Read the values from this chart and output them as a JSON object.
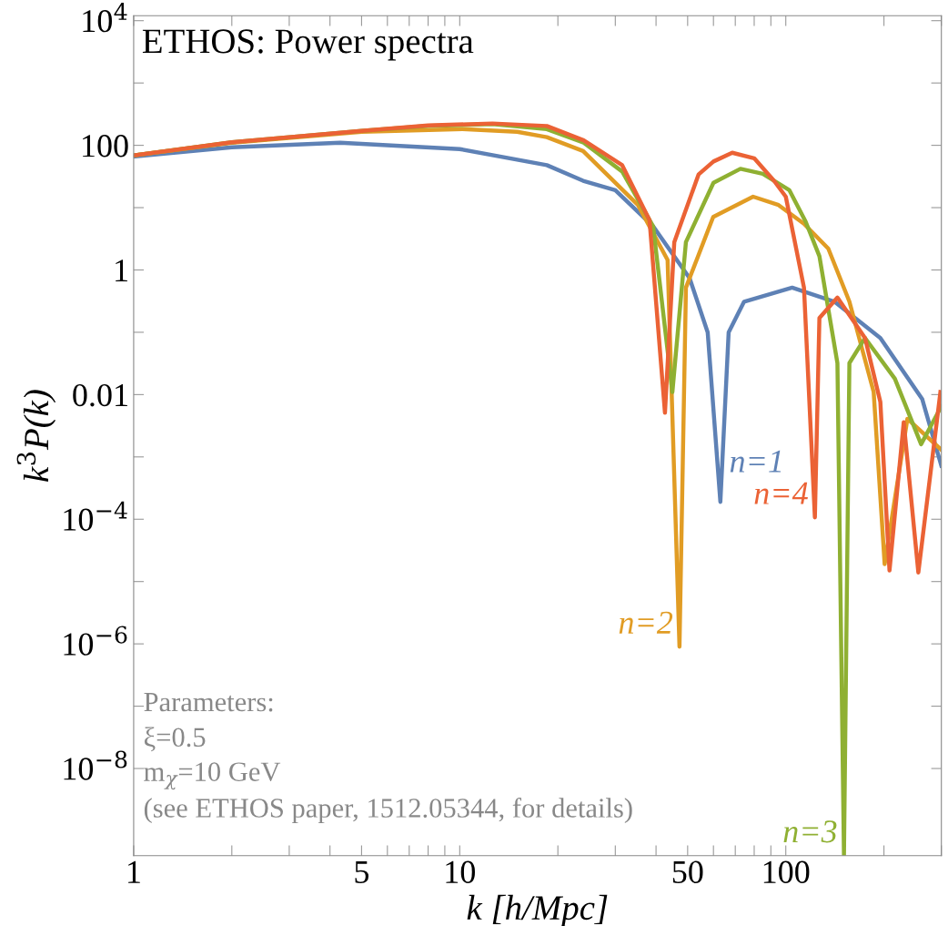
{
  "chart_data": {
    "type": "line",
    "title": "ETHOS: Power spectra",
    "xlabel": "k [h/Mpc]",
    "ylabel": "k$^{3}$P(k)",
    "log": "xy",
    "grid": false,
    "legend": false,
    "marker": "none",
    "line_style": "solid",
    "xlim": [
      1,
      300
    ],
    "ylim": [
      4e-10,
      12000
    ],
    "xticks": [
      1,
      {
        "value": 2,
        "label": null
      },
      {
        "value": 3,
        "label": null
      },
      {
        "value": 4,
        "label": null
      },
      5,
      {
        "value": 6,
        "label": null
      },
      {
        "value": 7,
        "label": null
      },
      {
        "value": 8,
        "label": null
      },
      {
        "value": 9,
        "label": null
      },
      10,
      {
        "value": 20,
        "label": null
      },
      {
        "value": 30,
        "label": null
      },
      {
        "value": 40,
        "label": null
      },
      50,
      {
        "value": 60,
        "label": null
      },
      {
        "value": 70,
        "label": null
      },
      {
        "value": 80,
        "label": null
      },
      {
        "value": 90,
        "label": null
      },
      100,
      {
        "value": 200,
        "label": null
      },
      {
        "value": 300,
        "label": null
      }
    ],
    "yticks": [
      {
        "value": 1e-08,
        "label": "10$^{−8}$"
      },
      {
        "value": 1e-07,
        "label": null
      },
      {
        "value": 1e-06,
        "label": "10$^{−6}$"
      },
      {
        "value": 1e-05,
        "label": null
      },
      {
        "value": 0.0001,
        "label": "10$^{−4}$"
      },
      {
        "value": 0.001,
        "label": null
      },
      0.01,
      {
        "value": 0.1,
        "label": null
      },
      1,
      {
        "value": 10,
        "label": null
      },
      100,
      {
        "value": 1000,
        "label": null
      },
      {
        "value": 10000,
        "label": "10$^{4}$"
      }
    ],
    "series": [
      {
        "color": "#5e81b5",
        "x": [
          1,
          2,
          4.3,
          10,
          18.5,
          23.9,
          30,
          39.2,
          50.7,
          57.6,
          63,
          66.8,
          74.5,
          104.6,
          141,
          195,
          262,
          300
        ],
        "values": [
          66,
          93,
          110,
          87,
          48,
          27,
          19,
          5,
          0.74,
          0.1,
          0.00019,
          0.1,
          0.31,
          0.52,
          0.31,
          0.081,
          0.0085,
          0.00072
        ]
      },
      {
        "color": "#e19c24",
        "x": [
          1,
          2,
          5,
          10.2,
          15,
          18.5,
          23.9,
          35.2,
          43.4,
          47.2,
          49.4,
          59.9,
          79.4,
          95,
          113.7,
          135,
          156.7,
          186,
          201,
          236,
          300
        ],
        "values": [
          69,
          110,
          165,
          182,
          165,
          135,
          81,
          11,
          1.45,
          9e-07,
          0.52,
          7.1,
          15,
          11,
          5.5,
          2.2,
          0.31,
          0.011,
          1.9e-05,
          0.0041,
          0.0013
        ]
      },
      {
        "color": "#8fb032",
        "x": [
          1,
          2,
          5,
          8,
          12.6,
          18.5,
          24,
          31.5,
          39.2,
          44.9,
          49.4,
          60,
          72.6,
          85,
          102.6,
          115,
          126.8,
          144,
          150.8,
          156.7,
          175,
          216,
          260,
          300
        ],
        "values": [
          69,
          112,
          170,
          205,
          219,
          182,
          110,
          38,
          5,
          0.011,
          2.8,
          25,
          42,
          35,
          19,
          6,
          1.66,
          0.032,
          4e-10,
          0.032,
          0.081,
          0.018,
          0.0016,
          0.0065
        ]
      },
      {
        "color": "#eb6235",
        "x": [
          1,
          2,
          5,
          8,
          12.6,
          18.5,
          24,
          31.5,
          38.2,
          42.6,
          45.5,
          54,
          60,
          68.5,
          80,
          92,
          100,
          113.7,
          122.8,
          126.8,
          144,
          175,
          195,
          208,
          230,
          255,
          298
        ],
        "values": [
          69,
          112,
          170,
          208,
          224,
          204,
          120,
          48,
          6.3,
          0.0051,
          2.8,
          34,
          55,
          76,
          62,
          27,
          15,
          0.52,
          0.000107,
          0.17,
          0.36,
          0.081,
          0.0076,
          1.5e-05,
          0.0036,
          1.4e-05,
          0.011
        ]
      }
    ],
    "annotations": [
      {
        "text": "n=1",
        "x": 63,
        "y": 0.00019
      },
      {
        "text": "n=4",
        "x": 122.8,
        "y": 0.000107
      },
      {
        "text": "n=2",
        "x": 47.2,
        "y": 9e-07
      },
      {
        "text": "n=3",
        "x": 150.8,
        "y": 4e-10
      },
      "Parameters:",
      "ξ=0.5",
      "m$_{χ}$=10 GeV",
      "(see ETHOS paper, 1512.05344, for details)"
    ]
  }
}
